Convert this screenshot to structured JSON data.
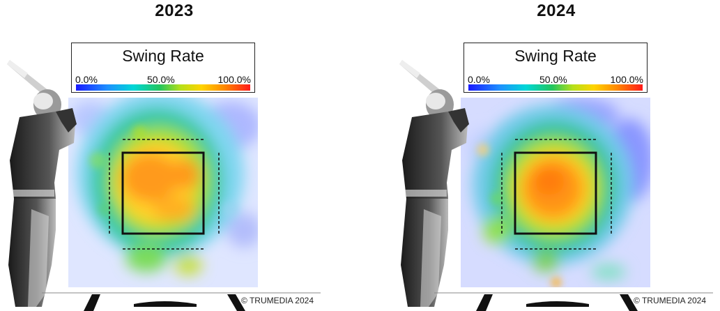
{
  "chart_data": [
    {
      "type": "heatmap",
      "title": "2023",
      "legend_title": "Swing Rate",
      "legend_ticks": [
        "0.0%",
        "50.0%",
        "100.0%"
      ],
      "color_range": [
        0,
        100
      ],
      "color_stops": [
        "#1a1aff",
        "#1e90ff",
        "#00d7d7",
        "#22c55e",
        "#b6e01a",
        "#ffd400",
        "#ff8a00",
        "#ff1a1a"
      ],
      "copyright": "© TRUMEDIA 2024"
    },
    {
      "type": "heatmap",
      "title": "2024",
      "legend_title": "Swing Rate",
      "legend_ticks": [
        "0.0%",
        "50.0%",
        "100.0%"
      ],
      "color_range": [
        0,
        100
      ],
      "color_stops": [
        "#1a1aff",
        "#1e90ff",
        "#00d7d7",
        "#22c55e",
        "#b6e01a",
        "#ffd400",
        "#ff8a00",
        "#ff1a1a"
      ],
      "copyright": "© TRUMEDIA 2024"
    }
  ]
}
